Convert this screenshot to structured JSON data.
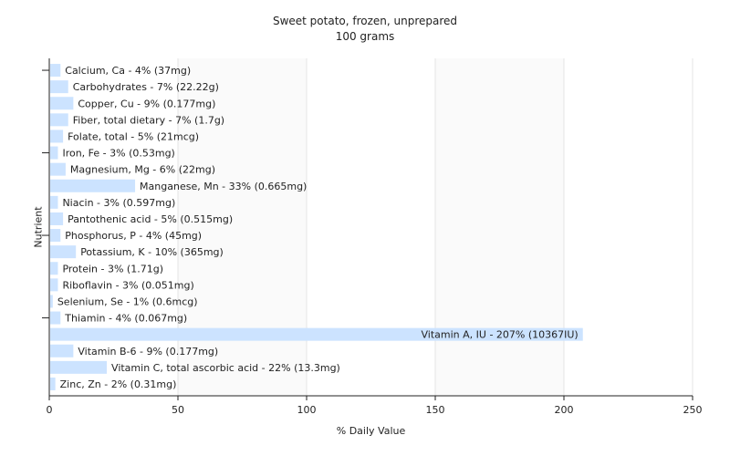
{
  "chart_data": {
    "type": "bar",
    "orientation": "horizontal",
    "title": "Sweet potato, frozen, unprepared",
    "subtitle": "100 grams",
    "xlabel": "% Daily Value",
    "ylabel": "Nutrient",
    "xlim": [
      0,
      250
    ],
    "xticks": [
      "0",
      "50",
      "100",
      "150",
      "200",
      "250"
    ],
    "grid": true,
    "bar_color": "#cce3ff",
    "categories": [
      "Calcium, Ca",
      "Carbohydrates",
      "Copper, Cu",
      "Fiber, total dietary",
      "Folate, total",
      "Iron, Fe",
      "Magnesium, Mg",
      "Manganese, Mn",
      "Niacin",
      "Pantothenic acid",
      "Phosphorus, P",
      "Potassium, K",
      "Protein",
      "Riboflavin",
      "Selenium, Se",
      "Thiamin",
      "Vitamin A, IU",
      "Vitamin B-6",
      "Vitamin C, total ascorbic acid",
      "Zinc, Zn"
    ],
    "values": [
      4,
      7,
      9,
      7,
      5,
      3,
      6,
      33,
      3,
      5,
      4,
      10,
      3,
      3,
      1,
      4,
      207,
      9,
      22,
      2
    ],
    "labels": [
      "Calcium, Ca - 4% (37mg)",
      "Carbohydrates - 7% (22.22g)",
      "Copper, Cu - 9% (0.177mg)",
      "Fiber, total dietary - 7% (1.7g)",
      "Folate, total - 5% (21mcg)",
      "Iron, Fe - 3% (0.53mg)",
      "Magnesium, Mg - 6% (22mg)",
      "Manganese, Mn - 33% (0.665mg)",
      "Niacin - 3% (0.597mg)",
      "Pantothenic acid - 5% (0.515mg)",
      "Phosphorus, P - 4% (45mg)",
      "Potassium, K - 10% (365mg)",
      "Protein - 3% (1.71g)",
      "Riboflavin - 3% (0.051mg)",
      "Selenium, Se - 1% (0.6mcg)",
      "Thiamin - 4% (0.067mg)",
      "Vitamin A, IU - 207% (10367IU)",
      "Vitamin B-6 - 9% (0.177mg)",
      "Vitamin C, total ascorbic acid - 22% (13.3mg)",
      "Zinc, Zn - 2% (0.31mg)"
    ]
  }
}
